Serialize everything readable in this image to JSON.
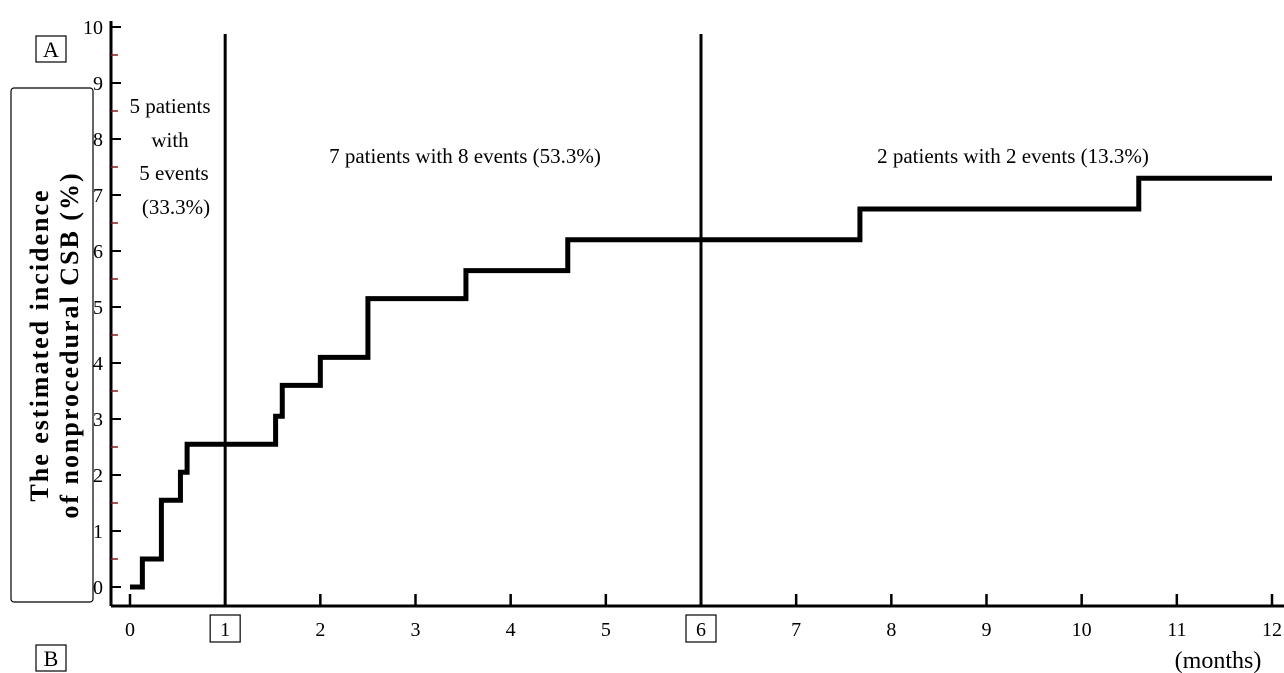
{
  "chart_data": {
    "type": "line",
    "step": true,
    "panel_labels": {
      "top": "A",
      "bottom": "B"
    },
    "ylabel_lines": [
      "The estimated incidence",
      "of nonprocedural CSB (%)"
    ],
    "xunit": "(months)",
    "xlim": [
      0,
      12
    ],
    "ylim": [
      0,
      10
    ],
    "xticks": [
      "0",
      "1",
      "2",
      "3",
      "4",
      "5",
      "6",
      "7",
      "8",
      "9",
      "10",
      "11",
      "12"
    ],
    "yticks": [
      "0",
      "1",
      "2",
      "3",
      "4",
      "5",
      "6",
      "7",
      "8",
      "9",
      "10"
    ],
    "boxed_xticks": [
      "1",
      "6"
    ],
    "reference_lines_x": [
      1,
      6
    ],
    "annotations": {
      "left_lines": [
        "5 patients",
        "with",
        "5 events",
        "(33.3%)"
      ],
      "middle": "7 patients with 8 events (53.3%)",
      "right": "2 patients with 2 events (13.3%)"
    },
    "series": [
      {
        "x": [
          0,
          0.13,
          0.33,
          0.53,
          0.6,
          1.53,
          1.6,
          2.0,
          2.5,
          3.53,
          4.6,
          7.67,
          10.6,
          12
        ],
        "y": [
          0,
          0.5,
          1.55,
          2.05,
          2.55,
          3.05,
          3.6,
          4.1,
          5.15,
          5.65,
          6.2,
          6.75,
          7.3,
          7.3
        ]
      }
    ]
  }
}
